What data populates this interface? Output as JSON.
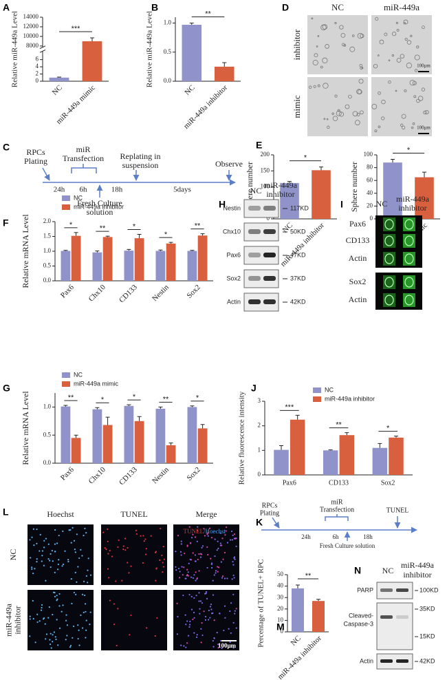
{
  "panel_labels": [
    "A",
    "B",
    "C",
    "D",
    "E",
    "F",
    "G",
    "H",
    "I",
    "J",
    "K",
    "L",
    "M",
    "N"
  ],
  "chart_data": [
    {
      "type": "bar",
      "ylabel": "Relative miR-449a Level",
      "categories": [
        "NC",
        "miR-449a mimic"
      ],
      "values": [
        1,
        9000
      ],
      "errors": [
        0.15,
        700
      ],
      "colors": [
        "#8f93c9",
        "#d9603f"
      ],
      "ylim": [
        0,
        14000
      ],
      "ybreak": [
        8,
        8000
      ],
      "yticks": [
        0,
        2,
        4,
        6,
        8000,
        10000,
        12000,
        14000
      ],
      "significance": "***"
    },
    {
      "type": "bar",
      "ylabel": "Relative miR-449a Level",
      "categories": [
        "NC",
        "miR-449a inhibitor"
      ],
      "values": [
        0.97,
        0.25
      ],
      "errors": [
        0.03,
        0.07
      ],
      "colors": [
        "#8f93c9",
        "#d9603f"
      ],
      "ylim": [
        0,
        1.1
      ],
      "yticks": [
        {
          "value": 0,
          "label": "0.0"
        },
        {
          "value": 0.5,
          "label": "0.5"
        },
        {
          "value": 1,
          "label": "1.0"
        }
      ],
      "significance": "**"
    },
    {
      "type": "bar",
      "ylabel": "Sphere number",
      "categories": [
        "NC",
        "miR-449a inhibitor"
      ],
      "values": [
        112,
        152
      ],
      "errors": [
        5,
        10
      ],
      "colors": [
        "#8f93c9",
        "#d9603f"
      ],
      "ylim": [
        0,
        200
      ],
      "yticks": [
        0,
        50,
        100,
        150,
        200
      ],
      "significance": "*"
    },
    {
      "type": "bar",
      "ylabel": "Sphere number",
      "categories": [
        "NC",
        "miR-449a mimic"
      ],
      "values": [
        88,
        65
      ],
      "errors": [
        5,
        8
      ],
      "colors": [
        "#8f93c9",
        "#d9603f"
      ],
      "ylim": [
        0,
        100
      ],
      "yticks": [
        0,
        20,
        40,
        60,
        80,
        100
      ],
      "significance": "*"
    },
    {
      "type": "grouped_bar",
      "ylabel": "Relative mRNA Level",
      "categories": [
        "Pax6",
        "Chx10",
        "CD133",
        "Nestin",
        "Sox2"
      ],
      "series": [
        {
          "name": "NC",
          "color": "#8f93c9",
          "values": [
            1.01,
            0.96,
            1.02,
            1.01,
            1.01
          ],
          "errors": [
            0.02,
            0.05,
            0.04,
            0.03,
            0.02
          ]
        },
        {
          "name": "miR-449a inhibitor",
          "color": "#d9603f",
          "values": [
            1.52,
            1.48,
            1.44,
            1.26,
            1.53
          ],
          "errors": [
            0.11,
            0.03,
            0.13,
            0.04,
            0.06
          ]
        }
      ],
      "ylim": [
        0,
        2
      ],
      "yticks": [
        {
          "value": 0,
          "label": "0.0"
        },
        {
          "value": 0.5,
          "label": "0.5"
        },
        {
          "value": 1,
          "label": "1.0"
        },
        {
          "value": 1.5,
          "label": "1.5"
        },
        {
          "value": 2,
          "label": "2.0"
        }
      ],
      "significance": [
        "*",
        "**",
        "*",
        "*",
        "**"
      ]
    },
    {
      "type": "grouped_bar",
      "ylabel": "Relative mRNA Level",
      "categories": [
        "Pax6",
        "Chx10",
        "CD133",
        "Nestin",
        "Sox2"
      ],
      "series": [
        {
          "name": "NC",
          "color": "#8f93c9",
          "values": [
            1.01,
            0.96,
            1.02,
            0.97,
            1.0
          ],
          "errors": [
            0.02,
            0.03,
            0.02,
            0.03,
            0.02
          ]
        },
        {
          "name": "miR-449a mimic",
          "color": "#d9603f",
          "values": [
            0.45,
            0.68,
            0.75,
            0.32,
            0.62
          ],
          "errors": [
            0.05,
            0.14,
            0.08,
            0.04,
            0.07
          ]
        }
      ],
      "ylim": [
        0,
        1.25
      ],
      "yticks": [
        {
          "value": 0,
          "label": "0.0"
        },
        {
          "value": 0.5,
          "label": "0.5"
        },
        {
          "value": 1,
          "label": "1.0"
        }
      ],
      "significance": [
        "**",
        "*",
        "*",
        "**",
        "*"
      ]
    },
    {
      "type": "grouped_bar",
      "ylabel": "Relative fluorescence intensity",
      "categories": [
        "Pax6",
        "CD133",
        "Sox2"
      ],
      "series": [
        {
          "name": "NC",
          "color": "#8f93c9",
          "values": [
            1.02,
            1.0,
            1.1
          ],
          "errors": [
            0.17,
            0.02,
            0.18
          ]
        },
        {
          "name": "miR-449a inhibitor",
          "color": "#d9603f",
          "values": [
            2.25,
            1.62,
            1.52
          ],
          "errors": [
            0.18,
            0.1,
            0.06
          ]
        }
      ],
      "ylim": [
        0,
        3
      ],
      "yticks": [
        0,
        1,
        2,
        3
      ],
      "significance": [
        "***",
        "**",
        "*"
      ]
    },
    {
      "type": "bar",
      "ylabel": "Percentage of TUNEL+ RPC",
      "categories": [
        "NC",
        "miR-449a inhibitor"
      ],
      "values": [
        38,
        27
      ],
      "errors": [
        3,
        1.5
      ],
      "colors": [
        "#8f93c9",
        "#d9603f"
      ],
      "ylim": [
        0,
        50
      ],
      "yticks": [
        0,
        10,
        20,
        30,
        40,
        50
      ],
      "significance": "**"
    }
  ],
  "panel_c": {
    "steps": [
      [
        "RPCs",
        "Plating"
      ],
      [
        "miR",
        "Transfection"
      ],
      [
        "Replating in",
        "suspension"
      ],
      [
        "Observe"
      ]
    ],
    "durations": [
      "24h",
      "6h",
      "18h",
      "5days"
    ],
    "fresh": [
      "Fresh Culture",
      "solution"
    ]
  },
  "panel_d": {
    "columns": [
      "NC",
      "miR-449a"
    ],
    "rows": [
      "inhibitor",
      "mimic"
    ],
    "scale_bar": "100μm"
  },
  "panel_h": {
    "columns": [
      [
        "NC"
      ],
      [
        "miR-449a",
        "inhibitor"
      ]
    ],
    "rows": [
      {
        "label": "Nestin",
        "size": "117KD"
      },
      {
        "label": "Chx10",
        "size": "50KD"
      },
      {
        "label": "Pax6",
        "size": "47KD"
      },
      {
        "label": "Sox2",
        "size": "37KD"
      },
      {
        "label": "Actin",
        "size": "42KD"
      }
    ]
  },
  "panel_i": {
    "columns": [
      [
        "NC"
      ],
      [
        "miR-449a",
        "inhibitor"
      ]
    ],
    "rows": [
      "Pax6",
      "CD133",
      "Actin",
      "Sox2",
      "Actin"
    ]
  },
  "panel_k": {
    "steps": [
      [
        "RPCs",
        "Plating"
      ],
      [
        "miR",
        "Transfection"
      ],
      [
        "TUNEL"
      ]
    ],
    "durations": [
      "24h",
      "6h",
      "18h"
    ],
    "fresh": "Fresh Culture solution"
  },
  "panel_l": {
    "columns": [
      "Hoechst",
      "TUNEL",
      "Merge"
    ],
    "rows": [
      [
        "NC"
      ],
      [
        "miR-449a",
        "inhibitor"
      ]
    ],
    "overlay": [
      "TUNEL",
      "/Hoechst"
    ],
    "scale_bar": "100μm"
  },
  "panel_n": {
    "columns": [
      [
        "NC"
      ],
      [
        "miR-449a",
        "inhibitor"
      ]
    ],
    "rows": [
      {
        "label": [
          "PARP"
        ],
        "sizes": [
          "100KD"
        ]
      },
      {
        "label": [
          "Cleaved-",
          "Caspase-3"
        ],
        "sizes": [
          "35KD",
          "15KD"
        ]
      },
      {
        "label": [
          "Actin"
        ],
        "sizes": [
          "42KD"
        ]
      }
    ]
  }
}
